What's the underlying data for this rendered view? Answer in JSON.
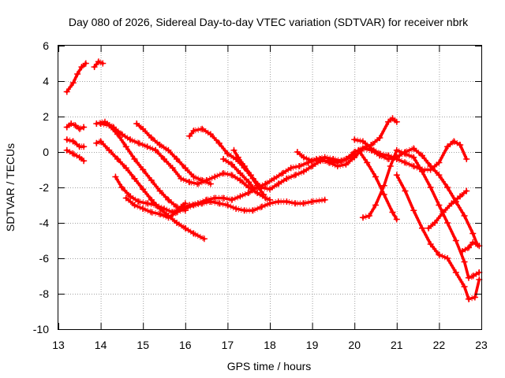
{
  "chart_data": {
    "type": "scatter",
    "title": "Day 080 of 2026, Sidereal Day-to-day VTEC variation (SDTVAR) for receiver nbrk",
    "xlabel": "GPS time / hours",
    "ylabel": "SDTVAR / TECUs",
    "xlim": [
      13,
      23
    ],
    "ylim": [
      -10,
      6
    ],
    "xticks": [
      13,
      14,
      15,
      16,
      17,
      18,
      19,
      20,
      21,
      22,
      23
    ],
    "yticks": [
      -10,
      -8,
      -6,
      -4,
      -2,
      0,
      2,
      4,
      6
    ],
    "grid": true,
    "marker": "+",
    "color": "#ff0000",
    "series": [
      {
        "name": "s1",
        "points": [
          [
            13.2,
            3.4
          ],
          [
            13.35,
            3.9
          ],
          [
            13.45,
            4.4
          ],
          [
            13.55,
            4.8
          ],
          [
            13.65,
            5.0
          ]
        ]
      },
      {
        "name": "s2",
        "points": [
          [
            13.85,
            4.8
          ],
          [
            13.95,
            5.1
          ],
          [
            14.05,
            5.0
          ]
        ]
      },
      {
        "name": "s3",
        "points": [
          [
            13.2,
            1.4
          ],
          [
            13.3,
            1.6
          ],
          [
            13.4,
            1.5
          ],
          [
            13.5,
            1.3
          ],
          [
            13.6,
            1.4
          ]
        ]
      },
      {
        "name": "s4",
        "points": [
          [
            13.2,
            0.7
          ],
          [
            13.35,
            0.6
          ],
          [
            13.5,
            0.3
          ],
          [
            13.6,
            0.3
          ]
        ]
      },
      {
        "name": "s5",
        "points": [
          [
            13.2,
            0.1
          ],
          [
            13.35,
            -0.1
          ],
          [
            13.5,
            -0.3
          ],
          [
            13.6,
            -0.5
          ]
        ]
      },
      {
        "name": "s6",
        "points": [
          [
            13.9,
            1.6
          ],
          [
            14.1,
            1.7
          ],
          [
            14.3,
            1.4
          ],
          [
            14.5,
            1.0
          ],
          [
            14.7,
            0.7
          ],
          [
            14.9,
            0.5
          ],
          [
            15.1,
            0.3
          ],
          [
            15.3,
            0.1
          ],
          [
            15.5,
            -0.4
          ],
          [
            15.7,
            -0.9
          ],
          [
            15.9,
            -1.5
          ],
          [
            16.1,
            -1.7
          ],
          [
            16.3,
            -1.8
          ],
          [
            16.5,
            -1.6
          ],
          [
            16.7,
            -1.4
          ],
          [
            16.9,
            -1.2
          ],
          [
            17.1,
            -1.3
          ],
          [
            17.3,
            -1.6
          ],
          [
            17.5,
            -2.0
          ],
          [
            17.7,
            -2.3
          ],
          [
            17.9,
            -2.6
          ],
          [
            18.0,
            -2.7
          ]
        ]
      },
      {
        "name": "s7",
        "points": [
          [
            13.9,
            0.5
          ],
          [
            14.0,
            0.6
          ],
          [
            14.2,
            0.1
          ],
          [
            14.4,
            -0.4
          ],
          [
            14.6,
            -0.9
          ],
          [
            14.8,
            -1.5
          ],
          [
            15.0,
            -2.1
          ],
          [
            15.2,
            -2.7
          ],
          [
            15.4,
            -3.2
          ],
          [
            15.6,
            -3.6
          ],
          [
            15.8,
            -4.0
          ],
          [
            16.0,
            -4.3
          ],
          [
            16.2,
            -4.6
          ],
          [
            16.45,
            -4.9
          ]
        ]
      },
      {
        "name": "s8",
        "points": [
          [
            14.0,
            1.6
          ],
          [
            14.2,
            1.5
          ],
          [
            14.4,
            1.0
          ],
          [
            14.6,
            0.3
          ],
          [
            14.8,
            -0.4
          ],
          [
            15.0,
            -1.0
          ],
          [
            15.2,
            -1.6
          ],
          [
            15.4,
            -2.2
          ],
          [
            15.6,
            -2.7
          ],
          [
            15.8,
            -3.1
          ],
          [
            16.0,
            -3.3
          ]
        ]
      },
      {
        "name": "s9",
        "points": [
          [
            14.35,
            -1.4
          ],
          [
            14.5,
            -2.0
          ],
          [
            14.7,
            -2.5
          ],
          [
            14.9,
            -2.8
          ],
          [
            15.1,
            -2.9
          ],
          [
            15.3,
            -3.0
          ],
          [
            15.5,
            -3.2
          ],
          [
            15.7,
            -3.4
          ],
          [
            15.9,
            -3.2
          ],
          [
            16.1,
            -3.0
          ],
          [
            16.3,
            -2.9
          ],
          [
            16.5,
            -2.7
          ],
          [
            16.7,
            -2.6
          ],
          [
            16.9,
            -2.6
          ],
          [
            17.1,
            -2.7
          ],
          [
            17.3,
            -2.5
          ],
          [
            17.5,
            -2.3
          ],
          [
            17.7,
            -2.0
          ],
          [
            17.9,
            -1.8
          ],
          [
            18.1,
            -1.5
          ],
          [
            18.3,
            -1.2
          ],
          [
            18.5,
            -0.9
          ],
          [
            18.7,
            -0.8
          ],
          [
            18.9,
            -0.6
          ],
          [
            19.1,
            -0.4
          ],
          [
            19.3,
            -0.3
          ],
          [
            19.5,
            -0.4
          ],
          [
            19.7,
            -0.5
          ],
          [
            19.9,
            -0.3
          ],
          [
            20.0,
            -0.1
          ]
        ]
      },
      {
        "name": "s10",
        "points": [
          [
            14.6,
            -2.6
          ],
          [
            14.8,
            -3.0
          ],
          [
            15.0,
            -3.2
          ],
          [
            15.2,
            -3.4
          ],
          [
            15.4,
            -3.5
          ],
          [
            15.6,
            -3.7
          ],
          [
            15.8,
            -3.4
          ],
          [
            16.0,
            -3.2
          ],
          [
            16.2,
            -3.0
          ],
          [
            16.4,
            -2.9
          ],
          [
            16.6,
            -2.8
          ],
          [
            16.8,
            -2.9
          ],
          [
            17.0,
            -3.0
          ],
          [
            17.2,
            -3.2
          ],
          [
            17.4,
            -3.3
          ],
          [
            17.6,
            -3.3
          ],
          [
            17.8,
            -3.1
          ],
          [
            18.0,
            -2.9
          ],
          [
            18.2,
            -2.8
          ],
          [
            18.4,
            -2.8
          ],
          [
            18.6,
            -2.9
          ],
          [
            18.8,
            -2.9
          ],
          [
            19.0,
            -2.8
          ],
          [
            19.3,
            -2.7
          ]
        ]
      },
      {
        "name": "s11",
        "points": [
          [
            15.8,
            -3.3
          ],
          [
            15.9,
            -3.1
          ],
          [
            16.0,
            -2.9
          ]
        ]
      },
      {
        "name": "s12",
        "points": [
          [
            14.85,
            1.6
          ],
          [
            15.0,
            1.3
          ],
          [
            15.2,
            0.8
          ],
          [
            15.4,
            0.4
          ],
          [
            15.6,
            0.1
          ],
          [
            15.8,
            -0.4
          ],
          [
            16.0,
            -0.9
          ],
          [
            16.2,
            -1.4
          ],
          [
            16.4,
            -1.6
          ],
          [
            16.6,
            -1.8
          ]
        ]
      },
      {
        "name": "s13",
        "points": [
          [
            16.1,
            0.9
          ],
          [
            16.2,
            1.2
          ],
          [
            16.4,
            1.3
          ],
          [
            16.6,
            1.0
          ],
          [
            16.8,
            0.5
          ],
          [
            17.0,
            -0.1
          ],
          [
            17.2,
            -0.4
          ],
          [
            17.4,
            -0.9
          ],
          [
            17.6,
            -1.5
          ],
          [
            17.8,
            -2.0
          ],
          [
            18.0,
            -2.1
          ],
          [
            18.2,
            -1.8
          ],
          [
            18.4,
            -1.5
          ],
          [
            18.6,
            -1.3
          ],
          [
            18.8,
            -1.1
          ],
          [
            19.0,
            -0.8
          ],
          [
            19.2,
            -0.5
          ],
          [
            19.4,
            -0.5
          ],
          [
            19.6,
            -0.6
          ],
          [
            19.8,
            -0.4
          ],
          [
            20.0,
            0.0
          ],
          [
            20.2,
            0.2
          ],
          [
            20.4,
            0.4
          ],
          [
            20.6,
            0.8
          ],
          [
            20.8,
            1.7
          ],
          [
            20.9,
            1.9
          ],
          [
            21.0,
            1.7
          ]
        ]
      },
      {
        "name": "s14",
        "points": [
          [
            17.15,
            0.1
          ],
          [
            17.25,
            -0.3
          ],
          [
            17.4,
            -0.8
          ],
          [
            17.55,
            -1.3
          ],
          [
            17.7,
            -1.9
          ],
          [
            17.85,
            -2.4
          ]
        ]
      },
      {
        "name": "s15",
        "points": [
          [
            16.9,
            -0.4
          ],
          [
            17.1,
            -0.7
          ],
          [
            17.3,
            -1.2
          ],
          [
            17.5,
            -1.7
          ],
          [
            17.6,
            -2.0
          ]
        ]
      },
      {
        "name": "s16",
        "points": [
          [
            18.65,
            0.0
          ],
          [
            18.8,
            -0.3
          ],
          [
            19.0,
            -0.5
          ],
          [
            19.2,
            -0.4
          ],
          [
            19.4,
            -0.6
          ],
          [
            19.6,
            -0.8
          ],
          [
            19.8,
            -0.7
          ],
          [
            20.0,
            -0.3
          ],
          [
            20.2,
            0.2
          ],
          [
            20.4,
            0.1
          ],
          [
            20.6,
            -0.2
          ],
          [
            20.8,
            -0.4
          ],
          [
            21.0,
            -0.3
          ],
          [
            21.2,
            0.0
          ],
          [
            21.4,
            0.2
          ],
          [
            21.6,
            -0.2
          ],
          [
            21.8,
            -0.8
          ],
          [
            22.0,
            -1.3
          ],
          [
            22.2,
            -2.0
          ],
          [
            22.4,
            -2.8
          ],
          [
            22.6,
            -3.6
          ],
          [
            22.8,
            -4.6
          ],
          [
            22.9,
            -5.2
          ]
        ]
      },
      {
        "name": "s17",
        "points": [
          [
            20.0,
            0.7
          ],
          [
            20.2,
            0.6
          ],
          [
            20.4,
            0.2
          ],
          [
            20.6,
            -0.1
          ],
          [
            20.8,
            -0.2
          ],
          [
            21.0,
            -0.4
          ],
          [
            21.2,
            -0.6
          ],
          [
            21.4,
            -0.8
          ],
          [
            21.6,
            -1.0
          ],
          [
            21.8,
            -1.0
          ],
          [
            22.0,
            -0.6
          ],
          [
            22.2,
            0.3
          ],
          [
            22.35,
            0.6
          ],
          [
            22.5,
            0.4
          ],
          [
            22.65,
            -0.4
          ]
        ]
      },
      {
        "name": "s18",
        "points": [
          [
            20.2,
            -3.7
          ],
          [
            20.35,
            -3.6
          ],
          [
            20.5,
            -3.0
          ],
          [
            20.7,
            -1.9
          ],
          [
            20.85,
            -0.8
          ],
          [
            21.0,
            0.1
          ],
          [
            21.2,
            -0.1
          ],
          [
            21.4,
            -0.3
          ],
          [
            21.6,
            -1.1
          ],
          [
            21.8,
            -2.0
          ],
          [
            22.0,
            -3.0
          ],
          [
            22.2,
            -4.0
          ],
          [
            22.4,
            -5.0
          ],
          [
            22.6,
            -6.2
          ],
          [
            22.7,
            -7.1
          ],
          [
            22.8,
            -7.0
          ],
          [
            22.95,
            -6.8
          ]
        ]
      },
      {
        "name": "s19",
        "points": [
          [
            20.1,
            0.1
          ],
          [
            20.3,
            -0.6
          ],
          [
            20.5,
            -1.4
          ],
          [
            20.7,
            -2.4
          ],
          [
            20.9,
            -3.4
          ],
          [
            21.0,
            -3.8
          ]
        ]
      },
      {
        "name": "s20",
        "points": [
          [
            21.0,
            -1.3
          ],
          [
            21.2,
            -2.2
          ],
          [
            21.4,
            -3.3
          ],
          [
            21.6,
            -4.3
          ],
          [
            21.8,
            -5.2
          ],
          [
            22.0,
            -5.8
          ],
          [
            22.2,
            -6.0
          ],
          [
            22.4,
            -6.8
          ],
          [
            22.6,
            -7.6
          ],
          [
            22.7,
            -8.3
          ],
          [
            22.85,
            -8.2
          ],
          [
            22.95,
            -7.2
          ]
        ]
      },
      {
        "name": "s21",
        "points": [
          [
            21.75,
            -4.3
          ],
          [
            21.9,
            -4.0
          ],
          [
            22.1,
            -3.4
          ],
          [
            22.3,
            -2.9
          ],
          [
            22.5,
            -2.5
          ],
          [
            22.65,
            -2.2
          ]
        ]
      },
      {
        "name": "s22",
        "points": [
          [
            22.55,
            -5.6
          ],
          [
            22.7,
            -5.4
          ],
          [
            22.8,
            -5.1
          ],
          [
            22.95,
            -5.3
          ]
        ]
      }
    ]
  }
}
